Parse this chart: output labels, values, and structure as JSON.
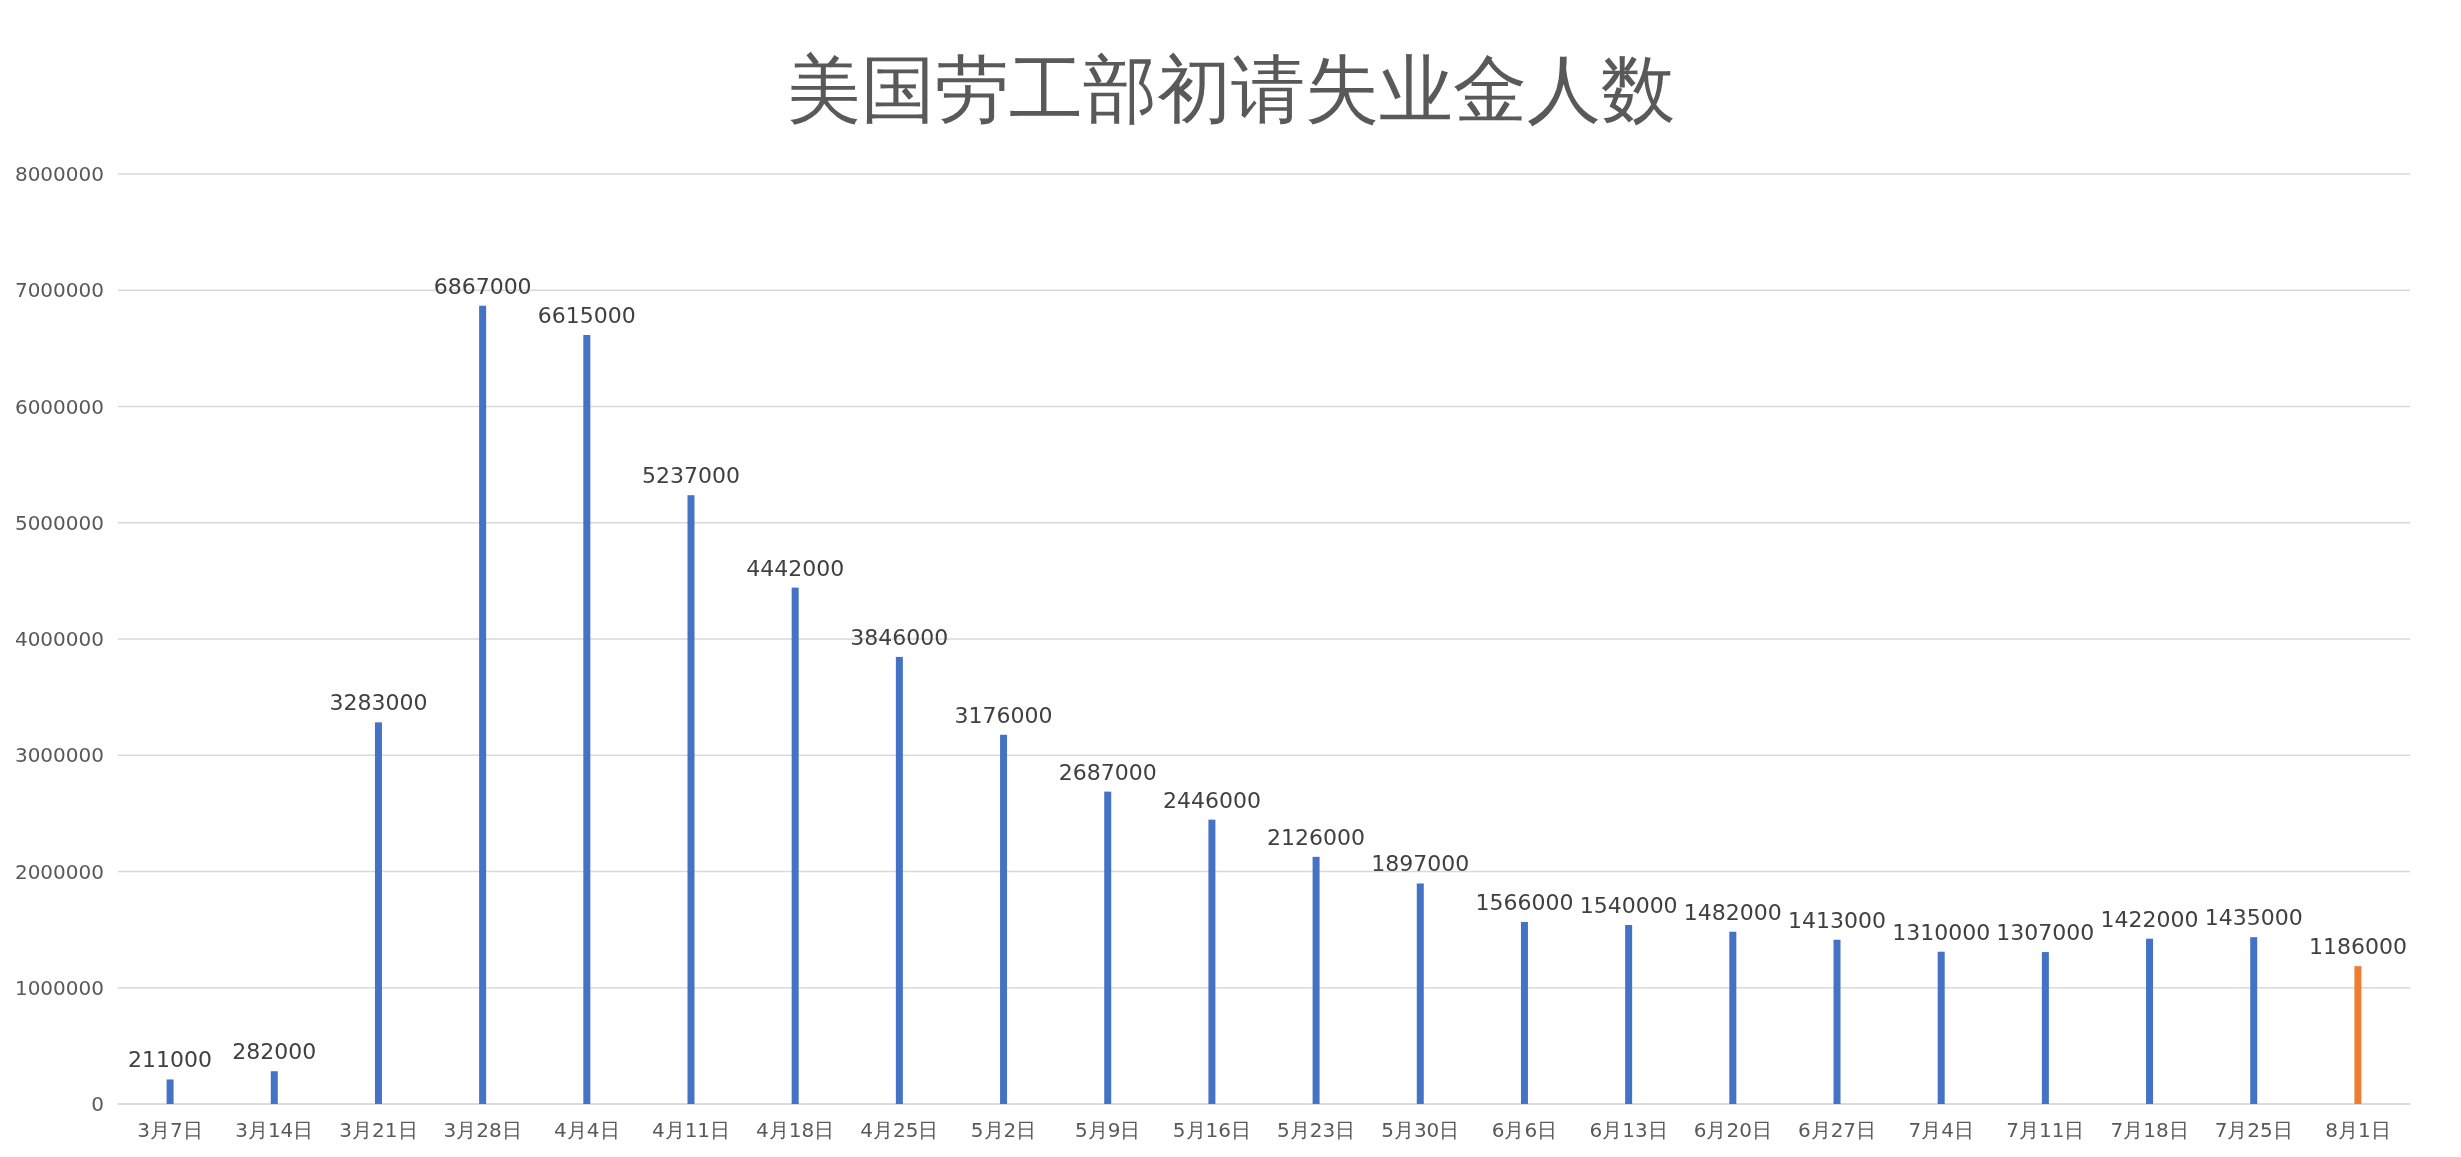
{
  "chart_data": {
    "type": "bar",
    "title": "美国劳工部初请失业金人数",
    "categories": [
      "3月7日",
      "3月14日",
      "3月21日",
      "3月28日",
      "4月4日",
      "4月11日",
      "4月18日",
      "4月25日",
      "5月2日",
      "5月9日",
      "5月16日",
      "5月23日",
      "5月30日",
      "6月6日",
      "6月13日",
      "6月20日",
      "6月27日",
      "7月4日",
      "7月11日",
      "7月18日",
      "7月25日",
      "8月1日"
    ],
    "values": [
      211000,
      282000,
      3283000,
      6867000,
      6615000,
      5237000,
      4442000,
      3846000,
      3176000,
      2687000,
      2446000,
      2126000,
      1897000,
      1566000,
      1540000,
      1482000,
      1413000,
      1310000,
      1307000,
      1422000,
      1435000,
      1186000
    ],
    "colors": [
      "#4472c4",
      "#4472c4",
      "#4472c4",
      "#4472c4",
      "#4472c4",
      "#4472c4",
      "#4472c4",
      "#4472c4",
      "#4472c4",
      "#4472c4",
      "#4472c4",
      "#4472c4",
      "#4472c4",
      "#4472c4",
      "#4472c4",
      "#4472c4",
      "#4472c4",
      "#4472c4",
      "#4472c4",
      "#4472c4",
      "#4472c4",
      "#ed7d31"
    ],
    "ylim": [
      0,
      8000000
    ],
    "yticks": [
      0,
      1000000,
      2000000,
      3000000,
      4000000,
      5000000,
      6000000,
      7000000,
      8000000
    ],
    "grid": "y",
    "data_labels": true
  }
}
